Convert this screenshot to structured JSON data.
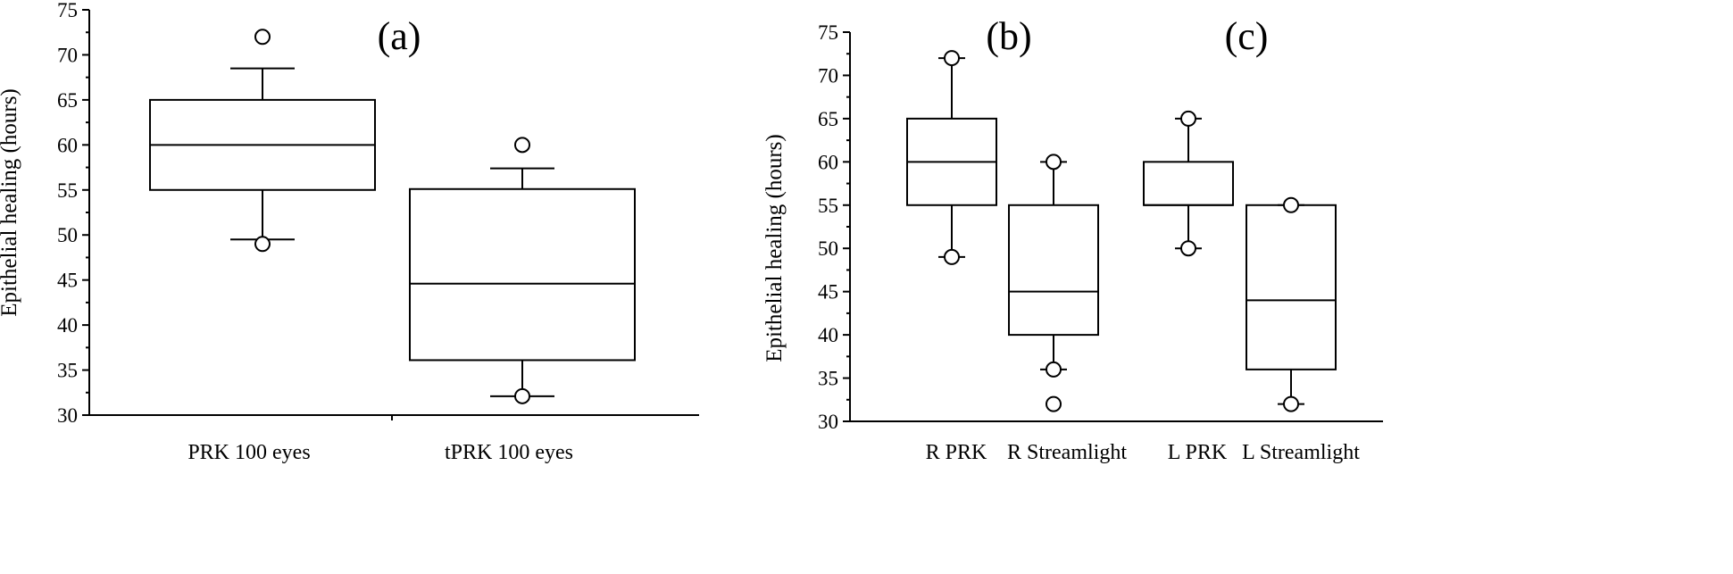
{
  "chart_data": [
    {
      "type": "box",
      "panel_label": "(a)",
      "ylabel": "Epithelial healing (hours)",
      "ylim": [
        30,
        75
      ],
      "y_ticks": [
        30,
        35,
        40,
        45,
        50,
        55,
        60,
        65,
        70,
        75
      ],
      "categories": [
        "PRK 100 eyes",
        "tPRK 100 eyes"
      ],
      "boxes": [
        {
          "name": "PRK 100 eyes",
          "whisker_low": 49.5,
          "q1": 55,
          "median": 60,
          "q3": 65,
          "whisker_high": 68.5,
          "outliers": [
            49,
            72
          ]
        },
        {
          "name": "tPRK 100 eyes",
          "whisker_low": 32.1,
          "q1": 36.1,
          "median": 44.6,
          "q3": 55.1,
          "whisker_high": 57.4,
          "outliers": [
            32.1,
            60
          ]
        }
      ]
    },
    {
      "type": "box",
      "panel_labels": [
        "(b)",
        "(c)"
      ],
      "ylabel": "Epithelial healing (hours)",
      "ylim": [
        30,
        75
      ],
      "y_ticks": [
        30,
        35,
        40,
        45,
        50,
        55,
        60,
        65,
        70,
        75
      ],
      "categories": [
        "R PRK",
        "R Streamlight",
        "L PRK",
        "L Streamlight"
      ],
      "boxes": [
        {
          "name": "R PRK",
          "whisker_low": 49,
          "q1": 55,
          "median": 60,
          "q3": 65,
          "whisker_high": 72,
          "outliers": [
            49,
            72
          ]
        },
        {
          "name": "R Streamlight",
          "whisker_low": 36,
          "q1": 40,
          "median": 45,
          "q3": 55,
          "whisker_high": 60,
          "outliers": [
            36,
            32,
            60
          ]
        },
        {
          "name": "L PRK",
          "whisker_low": 50,
          "q1": 55,
          "median": 55,
          "q3": 60,
          "whisker_high": 65,
          "outliers": [
            50,
            65
          ]
        },
        {
          "name": "L Streamlight",
          "whisker_low": 32,
          "q1": 36,
          "median": 44,
          "q3": 55,
          "whisker_high": 55,
          "outliers": [
            32,
            55
          ]
        }
      ]
    }
  ]
}
